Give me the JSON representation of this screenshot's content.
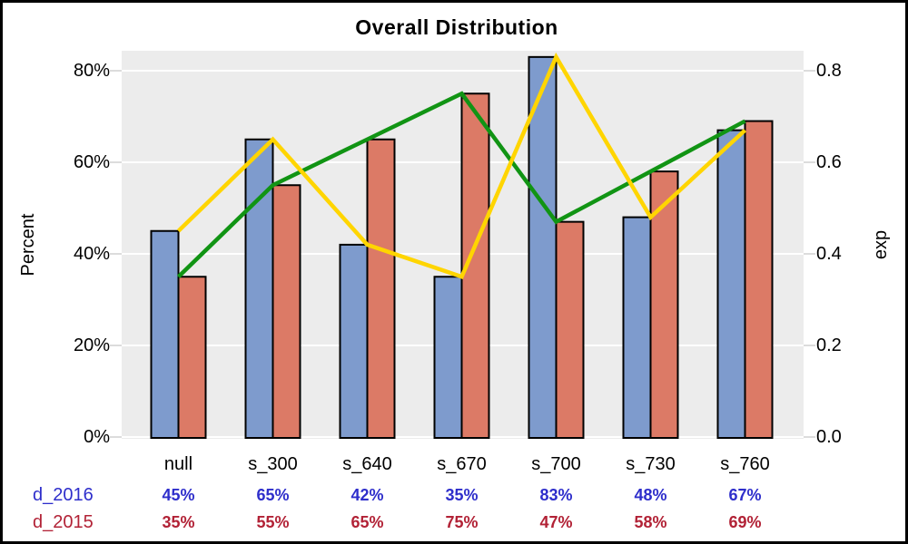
{
  "title": "Overall Distribution",
  "chart_data": {
    "type": "bar",
    "title": "Overall Distribution",
    "categories": [
      "null",
      "s_300",
      "s_640",
      "s_670",
      "s_700",
      "s_730",
      "s_760"
    ],
    "series": [
      {
        "name": "d_2016",
        "type": "bar",
        "axis": "left",
        "color": "#7e9bcd",
        "values": [
          45,
          65,
          42,
          35,
          83,
          48,
          67
        ],
        "unit": "%"
      },
      {
        "name": "d_2015",
        "type": "bar",
        "axis": "left",
        "color": "#dc7a66",
        "values": [
          35,
          55,
          65,
          75,
          47,
          58,
          69
        ],
        "unit": "%"
      },
      {
        "name": "d_2015",
        "type": "line",
        "axis": "right",
        "color": "#119414",
        "values": [
          0.35,
          0.55,
          0.65,
          0.75,
          0.47,
          0.58,
          0.69
        ]
      },
      {
        "name": "d_2016",
        "type": "line",
        "axis": "right",
        "color": "#ffd500",
        "values": [
          0.45,
          0.65,
          0.42,
          0.35,
          0.83,
          0.48,
          0.67
        ]
      }
    ],
    "left_axis": {
      "label": "Percent",
      "ticks": [
        "0%",
        "20%",
        "40%",
        "60%",
        "80%"
      ],
      "tick_values": [
        0,
        20,
        40,
        60,
        80
      ],
      "range": [
        0,
        84
      ]
    },
    "right_axis": {
      "label": "exp",
      "ticks": [
        "0.0",
        "0.2",
        "0.4",
        "0.6",
        "0.8"
      ],
      "tick_values": [
        0,
        0.2,
        0.4,
        0.6,
        0.8
      ],
      "range": [
        0,
        0.84
      ]
    },
    "grid": "horizontal-white-on-gray",
    "legend_position": "table-below",
    "table": {
      "rows": [
        {
          "label": "d_2016",
          "color": "#2e2ecb",
          "values": [
            "45%",
            "65%",
            "42%",
            "35%",
            "83%",
            "48%",
            "67%"
          ]
        },
        {
          "label": "d_2015",
          "color": "#b22236",
          "values": [
            "35%",
            "55%",
            "65%",
            "75%",
            "47%",
            "58%",
            "69%"
          ]
        }
      ]
    },
    "colors": {
      "plot_background": "#ececec",
      "gridline": "#ffffff",
      "tick_mark": "#dcdcdc",
      "bar_border": "#000000",
      "bar_blue": "#7e9bcd",
      "bar_red": "#dc7a66",
      "line_green": "#119414",
      "line_yellow": "#ffd500",
      "figure_border": "#000000",
      "text": "#000000"
    }
  }
}
